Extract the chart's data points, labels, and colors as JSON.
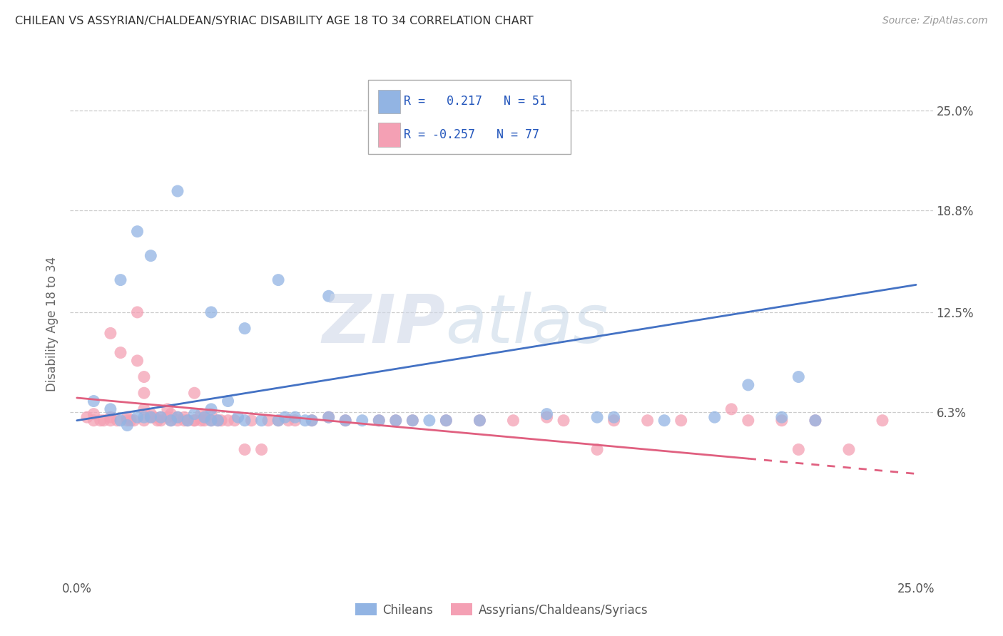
{
  "title": "CHILEAN VS ASSYRIAN/CHALDEAN/SYRIAC DISABILITY AGE 18 TO 34 CORRELATION CHART",
  "source": "Source: ZipAtlas.com",
  "ylabel": "Disability Age 18 to 34",
  "ytick_labels": [
    "6.3%",
    "12.5%",
    "18.8%",
    "25.0%"
  ],
  "ytick_values": [
    0.063,
    0.125,
    0.188,
    0.25
  ],
  "xlim": [
    -0.002,
    0.255
  ],
  "ylim": [
    -0.04,
    0.275
  ],
  "xmin_label": "0.0%",
  "xmax_label": "25.0%",
  "legend_line1": "R =   0.217   N = 51",
  "legend_line2": "R = -0.257   N = 77",
  "color_chilean": "#92b4e3",
  "color_assyrian": "#f4a0b4",
  "color_chilean_line": "#4472c4",
  "color_assyrian_line": "#e06080",
  "chilean_line_y0": 0.058,
  "chilean_line_y1": 0.142,
  "assyrian_line_y0": 0.072,
  "assyrian_line_y1": 0.025,
  "chilean_x": [
    0.005,
    0.01,
    0.013,
    0.015,
    0.018,
    0.02,
    0.022,
    0.025,
    0.028,
    0.03,
    0.033,
    0.035,
    0.038,
    0.04,
    0.04,
    0.042,
    0.045,
    0.048,
    0.05,
    0.055,
    0.06,
    0.062,
    0.065,
    0.068,
    0.07,
    0.075,
    0.08,
    0.085,
    0.09,
    0.095,
    0.1,
    0.105,
    0.11,
    0.12,
    0.14,
    0.155,
    0.16,
    0.175,
    0.19,
    0.2,
    0.21,
    0.215,
    0.22,
    0.013,
    0.018,
    0.022,
    0.03,
    0.04,
    0.05,
    0.06,
    0.075
  ],
  "chilean_y": [
    0.07,
    0.065,
    0.058,
    0.055,
    0.06,
    0.06,
    0.06,
    0.06,
    0.058,
    0.06,
    0.058,
    0.062,
    0.06,
    0.058,
    0.065,
    0.058,
    0.07,
    0.06,
    0.058,
    0.058,
    0.058,
    0.06,
    0.06,
    0.058,
    0.058,
    0.06,
    0.058,
    0.058,
    0.058,
    0.058,
    0.058,
    0.058,
    0.058,
    0.058,
    0.062,
    0.06,
    0.06,
    0.058,
    0.06,
    0.08,
    0.06,
    0.085,
    0.058,
    0.145,
    0.175,
    0.16,
    0.2,
    0.125,
    0.115,
    0.145,
    0.135
  ],
  "assyrian_x": [
    0.003,
    0.005,
    0.005,
    0.007,
    0.008,
    0.01,
    0.01,
    0.012,
    0.013,
    0.015,
    0.015,
    0.016,
    0.017,
    0.018,
    0.018,
    0.02,
    0.02,
    0.02,
    0.022,
    0.022,
    0.023,
    0.024,
    0.025,
    0.025,
    0.027,
    0.027,
    0.028,
    0.028,
    0.03,
    0.03,
    0.032,
    0.032,
    0.033,
    0.035,
    0.035,
    0.037,
    0.037,
    0.038,
    0.038,
    0.04,
    0.04,
    0.042,
    0.043,
    0.045,
    0.047,
    0.05,
    0.052,
    0.055,
    0.057,
    0.06,
    0.063,
    0.065,
    0.07,
    0.075,
    0.08,
    0.09,
    0.095,
    0.1,
    0.11,
    0.12,
    0.13,
    0.14,
    0.145,
    0.155,
    0.16,
    0.17,
    0.18,
    0.195,
    0.2,
    0.21,
    0.215,
    0.22,
    0.23,
    0.24,
    0.01,
    0.02,
    0.035
  ],
  "assyrian_y": [
    0.06,
    0.062,
    0.058,
    0.058,
    0.058,
    0.058,
    0.06,
    0.058,
    0.1,
    0.06,
    0.058,
    0.058,
    0.058,
    0.095,
    0.125,
    0.065,
    0.075,
    0.058,
    0.06,
    0.062,
    0.06,
    0.058,
    0.058,
    0.06,
    0.06,
    0.065,
    0.058,
    0.062,
    0.06,
    0.058,
    0.06,
    0.058,
    0.058,
    0.058,
    0.058,
    0.058,
    0.062,
    0.058,
    0.06,
    0.058,
    0.062,
    0.058,
    0.058,
    0.058,
    0.058,
    0.04,
    0.058,
    0.04,
    0.058,
    0.058,
    0.058,
    0.058,
    0.058,
    0.06,
    0.058,
    0.058,
    0.058,
    0.058,
    0.058,
    0.058,
    0.058,
    0.06,
    0.058,
    0.04,
    0.058,
    0.058,
    0.058,
    0.065,
    0.058,
    0.058,
    0.04,
    0.058,
    0.04,
    0.058,
    0.112,
    0.085,
    0.075
  ]
}
